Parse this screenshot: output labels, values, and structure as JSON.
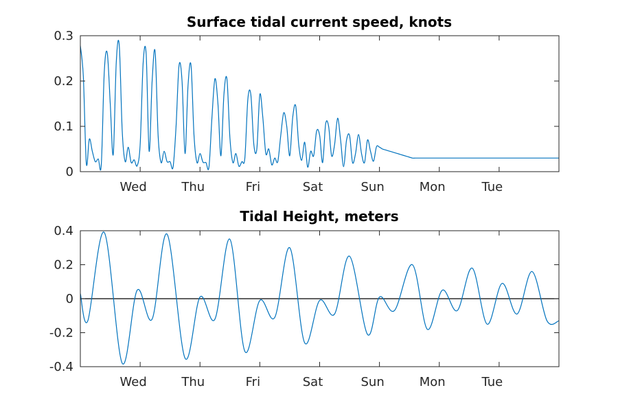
{
  "chart_data": [
    {
      "type": "line",
      "title": "Surface tidal current speed, knots",
      "xlabel": "",
      "ylabel": "",
      "xlim": [
        0,
        8
      ],
      "ylim": [
        0,
        0.3
      ],
      "xticks": [
        {
          "pos": 1,
          "label": "Wed"
        },
        {
          "pos": 2,
          "label": "Thu"
        },
        {
          "pos": 3,
          "label": "Fri"
        },
        {
          "pos": 4,
          "label": "Sat"
        },
        {
          "pos": 5,
          "label": "Sun"
        },
        {
          "pos": 6,
          "label": "Mon"
        },
        {
          "pos": 7,
          "label": "Tue"
        }
      ],
      "yticks": [
        {
          "value": 0,
          "label": "0"
        },
        {
          "value": 0.1,
          "label": "0.1"
        },
        {
          "value": 0.2,
          "label": "0.2"
        },
        {
          "value": 0.3,
          "label": "0.3"
        }
      ],
      "grid": false,
      "series": [
        {
          "color": "#0072BD",
          "x": [
            0,
            0.05,
            0.1,
            0.15,
            0.2,
            0.25,
            0.3,
            0.35,
            0.4,
            0.45,
            0.5,
            0.55,
            0.6,
            0.65,
            0.7,
            0.75,
            0.8,
            0.85,
            0.9,
            0.95,
            1,
            1.05,
            1.1,
            1.15,
            1.2,
            1.25,
            1.3,
            1.35,
            1.4,
            1.45,
            1.5,
            1.55,
            1.6,
            1.65,
            1.7,
            1.75,
            1.8,
            1.85,
            1.9,
            1.95,
            2,
            2.05,
            2.1,
            2.15,
            2.2,
            2.25,
            2.3,
            2.35,
            2.4,
            2.45,
            2.5,
            2.55,
            2.6,
            2.65,
            2.7,
            2.75,
            2.8,
            2.85,
            2.9,
            2.95,
            3,
            3.05,
            3.1,
            3.15,
            3.2,
            3.25,
            3.3,
            3.35,
            3.4,
            3.45,
            3.5,
            3.55,
            3.6,
            3.65,
            3.7,
            3.75,
            3.8,
            3.85,
            3.9,
            3.95,
            4,
            4.05,
            4.1,
            4.15,
            4.2,
            4.25,
            4.3,
            4.35,
            4.4,
            4.45,
            4.5,
            4.55,
            4.6,
            4.65,
            4.7,
            4.75,
            4.8,
            4.85,
            4.9,
            4.95,
            5,
            5.05,
            5.1,
            5.15,
            5.2,
            5.25,
            5.3,
            5.35,
            5.4,
            5.45,
            5.5,
            5.55,
            5.6,
            5.65,
            5.7,
            5.75,
            5.8,
            5.85,
            5.9,
            5.95,
            6,
            6.05,
            6.1,
            6.15,
            6.2,
            6.25,
            6.3,
            6.35,
            6.4,
            6.45,
            6.5,
            6.55,
            6.6,
            6.65,
            6.7,
            6.75,
            6.8,
            6.85,
            6.9,
            6.95,
            7,
            7.05,
            7.1,
            7.15,
            7.2,
            7.25,
            7.3,
            7.35,
            7.4,
            7.45,
            7.5,
            7.55,
            7.6,
            7.65,
            7.7,
            7.75,
            7.8,
            7.85,
            7.9,
            7.95,
            8
          ],
          "y": [
            0.278,
            0.21,
            0.018,
            0.072,
            0.045,
            0.022,
            0.028,
            0.015,
            0.22,
            0.262,
            0.15,
            0.038,
            0.24,
            0.28,
            0.09,
            0.022,
            0.054,
            0.02,
            0.026,
            0.013,
            0.06,
            0.24,
            0.26,
            0.045,
            0.2,
            0.265,
            0.08,
            0.02,
            0.045,
            0.022,
            0.022,
            0.01,
            0.1,
            0.235,
            0.2,
            0.04,
            0.19,
            0.235,
            0.08,
            0.02,
            0.04,
            0.021,
            0.02,
            0.01,
            0.12,
            0.205,
            0.15,
            0.035,
            0.17,
            0.205,
            0.075,
            0.02,
            0.04,
            0.012,
            0.022,
            0.03,
            0.16,
            0.17,
            0.06,
            0.05,
            0.17,
            0.12,
            0.04,
            0.05,
            0.015,
            0.03,
            0.022,
            0.08,
            0.13,
            0.1,
            0.035,
            0.12,
            0.145,
            0.06,
            0.025,
            0.065,
            0.01,
            0.045,
            0.035,
            0.09,
            0.08,
            0.02,
            0.105,
            0.1,
            0.035,
            0.06,
            0.118,
            0.07,
            0.011,
            0.07,
            0.08,
            0.02,
            0.04,
            0.082,
            0.04,
            0.02,
            0.07,
            0.045,
            0.023,
            0.055,
            0.054,
            0.05,
            0.048,
            0.046,
            0.044,
            0.042,
            0.04,
            0.038,
            0.036,
            0.034,
            0.032,
            0.03,
            0.03,
            0.03,
            0.03,
            0.03,
            0.03,
            0.03,
            0.03,
            0.03,
            0.03,
            0.03,
            0.03,
            0.03,
            0.03,
            0.03,
            0.03,
            0.03,
            0.03,
            0.03,
            0.03,
            0.03,
            0.03,
            0.03,
            0.03,
            0.03,
            0.03,
            0.03,
            0.03,
            0.03,
            0.03,
            0.03,
            0.03,
            0.03,
            0.03,
            0.03,
            0.03,
            0.03,
            0.03,
            0.03,
            0.03,
            0.03,
            0.03,
            0.03,
            0.03,
            0.03,
            0.03,
            0.03,
            0.03,
            0.03,
            0.03
          ]
        }
      ]
    },
    {
      "type": "line",
      "title": "Tidal Height, meters",
      "xlabel": "",
      "ylabel": "",
      "xlim": [
        0,
        8
      ],
      "ylim": [
        -0.4,
        0.4
      ],
      "xticks": [
        {
          "pos": 1,
          "label": "Wed"
        },
        {
          "pos": 2,
          "label": "Thu"
        },
        {
          "pos": 3,
          "label": "Fri"
        },
        {
          "pos": 4,
          "label": "Sat"
        },
        {
          "pos": 5,
          "label": "Sun"
        },
        {
          "pos": 6,
          "label": "Mon"
        },
        {
          "pos": 7,
          "label": "Tue"
        }
      ],
      "yticks": [
        {
          "value": -0.4,
          "label": "-0.4"
        },
        {
          "value": -0.2,
          "label": "-0.2"
        },
        {
          "value": 0,
          "label": "0"
        },
        {
          "value": 0.2,
          "label": "0.2"
        },
        {
          "value": 0.4,
          "label": "0.4"
        }
      ],
      "grid": false,
      "zero_line": true,
      "series": [
        {
          "color": "#0072BD",
          "x": [
            0,
            0.125,
            0.4,
            0.7,
            0.95,
            1.2,
            1.45,
            1.75,
            2.0,
            2.25,
            2.5,
            2.75,
            3.0,
            3.25,
            3.5,
            3.75,
            4.0,
            4.25,
            4.5,
            4.8,
            5.0,
            5.25,
            5.55,
            5.8,
            6.05,
            6.3,
            6.55,
            6.8,
            7.05,
            7.3,
            7.55,
            7.8,
            8.0
          ],
          "y": [
            0.03,
            -0.13,
            0.39,
            -0.38,
            0.05,
            -0.12,
            0.38,
            -0.35,
            0.01,
            -0.12,
            0.35,
            -0.31,
            -0.01,
            -0.11,
            0.3,
            -0.26,
            -0.01,
            -0.09,
            0.25,
            -0.21,
            0.01,
            -0.07,
            0.2,
            -0.18,
            0.05,
            -0.07,
            0.18,
            -0.15,
            0.09,
            -0.09,
            0.16,
            -0.13,
            -0.13
          ]
        }
      ]
    }
  ]
}
